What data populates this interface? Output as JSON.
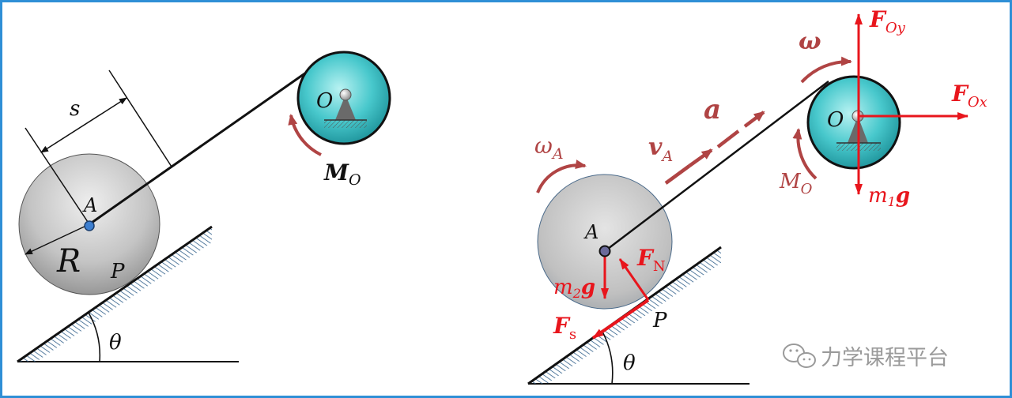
{
  "colors": {
    "border": "#2f8fd6",
    "pulley_fill": "#48c8cc",
    "roller_fill": "#c4c4c4",
    "force_red": "#e8151c",
    "kinematic_rust": "#b04444",
    "hatch": "#2e5e8a"
  },
  "left_diagram": {
    "label_s": "s",
    "label_A": "A",
    "label_R": "R",
    "label_P": "P",
    "label_theta": "θ",
    "label_O": "O",
    "moment_main": "M",
    "moment_sub": "O"
  },
  "right_diagram": {
    "label_A": "A",
    "label_O": "O",
    "label_P": "P",
    "label_theta": "θ",
    "omega_A_main": "ω",
    "omega_A_sub": "A",
    "v_A_main": "v",
    "v_A_sub": "A",
    "accel": "a",
    "omega": "ω",
    "F_Oy_main": "F",
    "F_Oy_sub": "Oy",
    "F_Ox_main": "F",
    "F_Ox_sub": "Ox",
    "M_O_main": "M",
    "M_O_sub": "O",
    "m1g_m": "m",
    "m1g_sub": "1",
    "m1g_g": "g",
    "m2g_m": "m",
    "m2g_sub": "2",
    "m2g_g": "g",
    "F_N_main": "F",
    "F_N_sub": "N",
    "F_s_main": "F",
    "F_s_sub": "s"
  },
  "watermark": {
    "icon": "wechat-icon",
    "text": "力学课程平台"
  }
}
